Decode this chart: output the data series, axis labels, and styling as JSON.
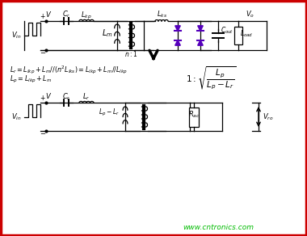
{
  "bg_color": "#ffffff",
  "border_color": "#cc0000",
  "border_width": 2,
  "text_color": "#000000",
  "green_text": "#00bb00",
  "purple_diode": "#5500bb",
  "fig_width": 3.8,
  "fig_height": 2.92,
  "watermark": "www.cntronics.com"
}
